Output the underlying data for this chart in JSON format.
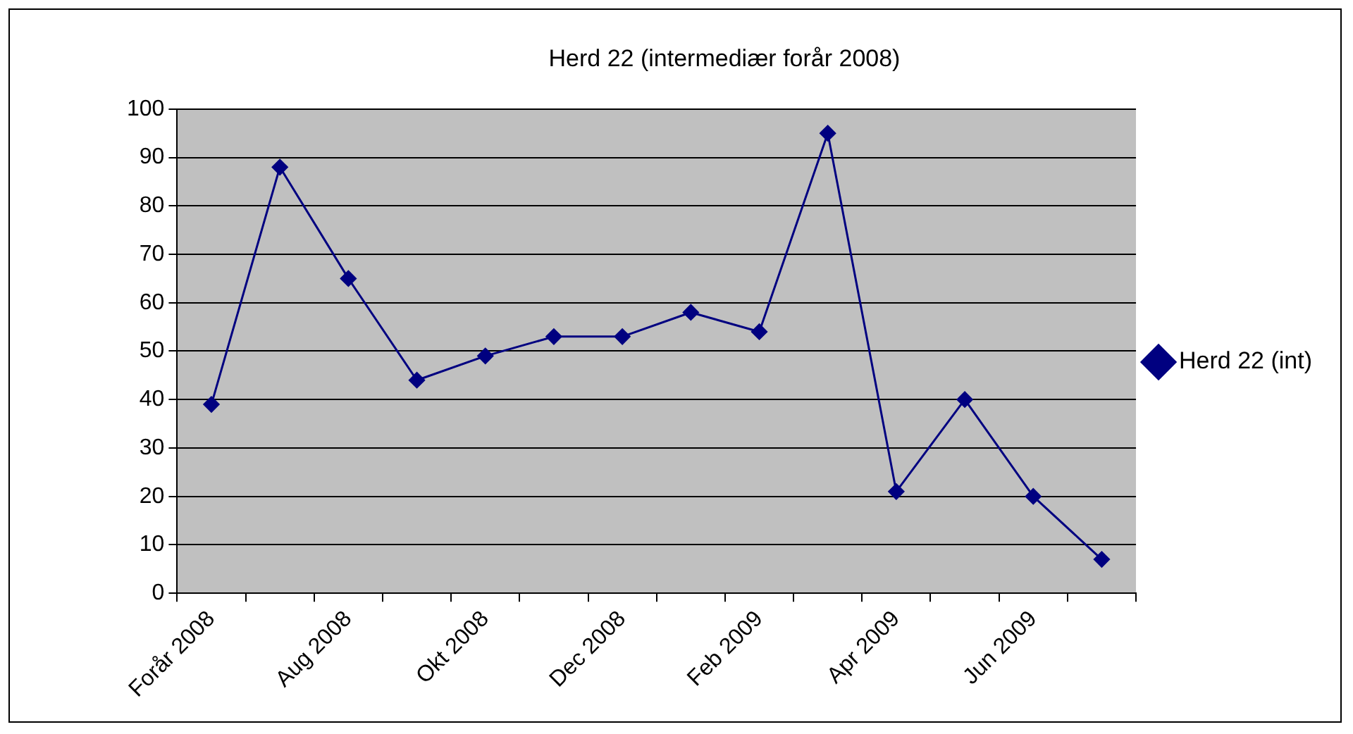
{
  "chart_data": {
    "type": "line",
    "title": "Herd 22 (intermediær forår 2008)",
    "categories": [
      "Forår 2008",
      null,
      "Aug 2008",
      null,
      "Okt 2008",
      null,
      "Dec 2008",
      null,
      "Feb 2009",
      null,
      "Apr 2009",
      null,
      "Jun 2009",
      null
    ],
    "series": [
      {
        "name": "Herd 22 (int)",
        "color": "#000080",
        "values": [
          39,
          88,
          65,
          44,
          49,
          53,
          53,
          58,
          54,
          95,
          21,
          40,
          20,
          7
        ]
      }
    ],
    "ylim": [
      0,
      100
    ],
    "yticks": [
      0,
      10,
      20,
      30,
      40,
      50,
      60,
      70,
      80,
      90,
      100
    ],
    "grid": "y",
    "legend": "right",
    "marker": "diamond",
    "line_style": "solid"
  }
}
